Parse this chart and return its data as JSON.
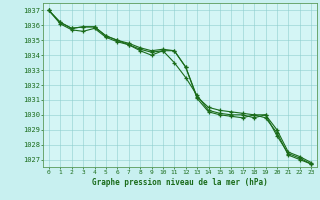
{
  "line1": {
    "x": [
      0,
      1,
      2,
      3,
      4,
      5,
      6,
      7,
      8,
      9,
      10,
      11,
      12,
      13,
      14,
      15,
      16,
      17,
      18,
      19,
      20,
      21,
      22,
      23
    ],
    "y": [
      1037.0,
      1036.2,
      1035.8,
      1035.9,
      1035.9,
      1035.3,
      1035.0,
      1034.8,
      1034.5,
      1034.3,
      1034.4,
      1034.3,
      1033.2,
      1031.2,
      1030.5,
      1030.3,
      1030.2,
      1030.1,
      1030.0,
      1030.0,
      1029.0,
      1027.5,
      1027.2,
      1026.8
    ]
  },
  "line2": {
    "x": [
      0,
      1,
      2,
      3,
      4,
      5,
      6,
      7,
      8,
      9,
      10,
      11,
      12,
      13,
      14,
      15,
      16,
      17,
      18,
      19,
      20,
      21,
      22,
      23
    ],
    "y": [
      1037.0,
      1036.2,
      1035.8,
      1035.9,
      1035.9,
      1035.3,
      1035.0,
      1034.7,
      1034.4,
      1034.2,
      1034.3,
      1033.5,
      1032.5,
      1031.3,
      1030.3,
      1030.1,
      1030.0,
      1030.0,
      1029.8,
      1030.0,
      1028.6,
      1027.4,
      1027.1,
      1026.7
    ]
  },
  "line3": {
    "x": [
      0,
      1,
      2,
      3,
      4,
      5,
      6,
      7,
      8,
      9,
      10,
      11,
      12,
      13,
      14,
      15,
      16,
      17,
      18,
      19,
      20,
      21,
      22,
      23
    ],
    "y": [
      1037.0,
      1036.1,
      1035.7,
      1035.6,
      1035.8,
      1035.2,
      1034.9,
      1034.7,
      1034.3,
      1034.0,
      1034.3,
      1034.3,
      1033.2,
      1031.1,
      1030.2,
      1030.0,
      1029.9,
      1029.8,
      1030.0,
      1029.8,
      1028.8,
      1027.3,
      1027.0,
      1026.7
    ]
  },
  "ylim": [
    1026.5,
    1037.5
  ],
  "xlim": [
    -0.5,
    23.5
  ],
  "yticks": [
    1027,
    1028,
    1029,
    1030,
    1031,
    1032,
    1033,
    1034,
    1035,
    1036,
    1037
  ],
  "xticks": [
    0,
    1,
    2,
    3,
    4,
    5,
    6,
    7,
    8,
    9,
    10,
    11,
    12,
    13,
    14,
    15,
    16,
    17,
    18,
    19,
    20,
    21,
    22,
    23
  ],
  "line_color": "#1a6b1a",
  "bg_plot": "#d4f5f5",
  "bg_fig": "#c8f0f0",
  "grid_color": "#8ecece",
  "xlabel": "Graphe pression niveau de la mer (hPa)",
  "xlabel_color": "#1a6b1a",
  "tick_color": "#1a6b1a",
  "axis_color": "#5a9a5a"
}
